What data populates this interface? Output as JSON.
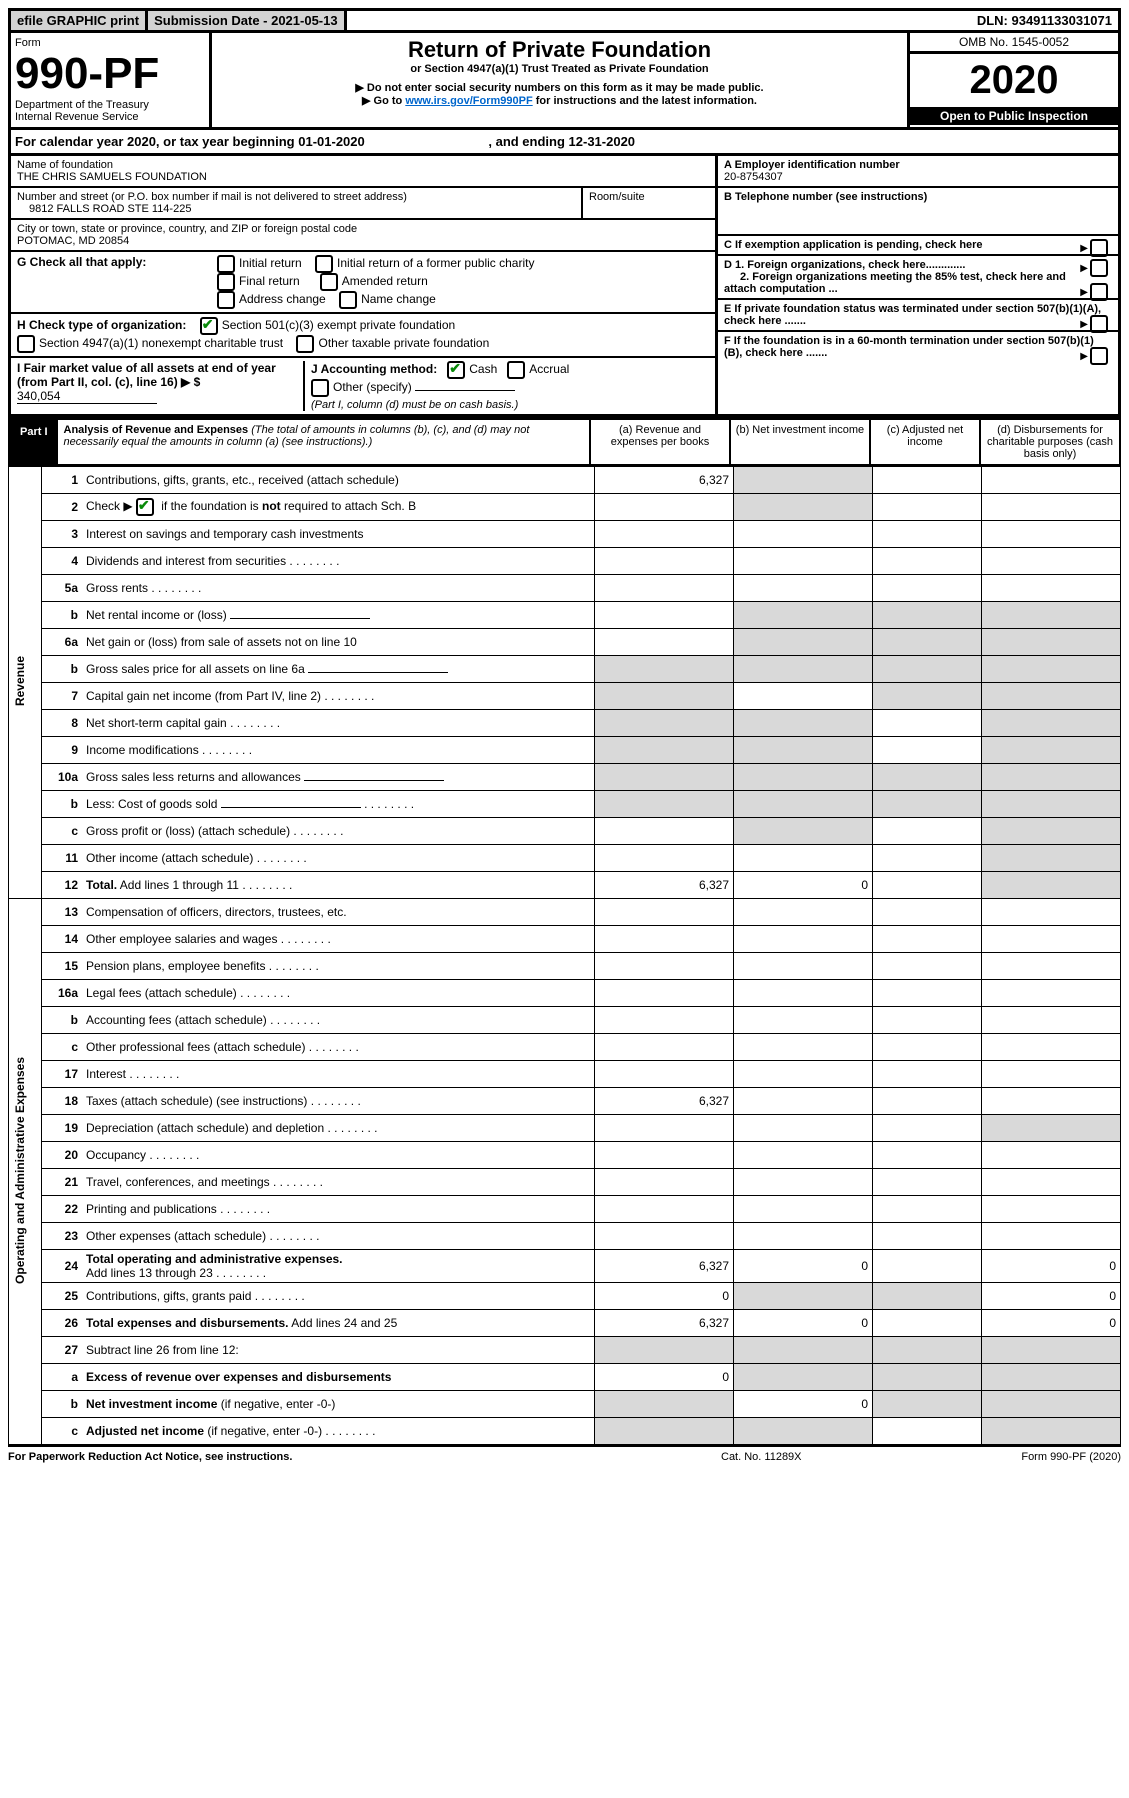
{
  "topbar": {
    "left": "efile GRAPHIC print",
    "mid": "Submission Date - 2021-05-13",
    "right": "DLN: 93491133031071"
  },
  "header": {
    "form_label": "Form",
    "form_number": "990-PF",
    "dept": "Department of the Treasury",
    "irs": "Internal Revenue Service",
    "title": "Return of Private Foundation",
    "subtitle": "or Section 4947(a)(1) Trust Treated as Private Foundation",
    "note1": "▶ Do not enter social security numbers on this form as it may be made public.",
    "note2_pre": "▶ Go to ",
    "note2_link": "www.irs.gov/Form990PF",
    "note2_post": " for instructions and the latest information.",
    "omb": "OMB No. 1545-0052",
    "year": "2020",
    "inspection": "Open to Public Inspection"
  },
  "calyear": {
    "pre": "For calendar year 2020, or tax year beginning ",
    "begin": "01-01-2020",
    "mid": ", and ending ",
    "end": "12-31-2020"
  },
  "info": {
    "name_label": "Name of foundation",
    "name": "THE CHRIS SAMUELS FOUNDATION",
    "addr_label": "Number and street (or P.O. box number if mail is not delivered to street address)",
    "addr": "9812 FALLS ROAD STE 114-225",
    "room_label": "Room/suite",
    "city_label": "City or town, state or province, country, and ZIP or foreign postal code",
    "city": "POTOMAC, MD  20854",
    "ein_label": "A Employer identification number",
    "ein": "20-8754307",
    "tel_label": "B Telephone number (see instructions)",
    "c": "C If exemption application is pending, check here",
    "d1": "D 1. Foreign organizations, check here.............",
    "d2": "2. Foreign organizations meeting the 85% test, check here and attach computation ...",
    "e": "E If private foundation status was terminated under section 507(b)(1)(A), check here .......",
    "f": "F If the foundation is in a 60-month termination under section 507(b)(1)(B), check here .......",
    "g_label": "G Check all that apply:",
    "g_initial": "Initial return",
    "g_initial_former": "Initial return of a former public charity",
    "g_final": "Final return",
    "g_amended": "Amended return",
    "g_addrchg": "Address change",
    "g_namechg": "Name change",
    "h_label": "H Check type of organization:",
    "h_501c3": "Section 501(c)(3) exempt private foundation",
    "h_4947": "Section 4947(a)(1) nonexempt charitable trust",
    "h_other": "Other taxable private foundation",
    "i_label": "I Fair market value of all assets at end of year (from Part II, col. (c), line 16) ▶ $",
    "i_val": "340,054",
    "j_label": "J Accounting method:",
    "j_cash": "Cash",
    "j_accrual": "Accrual",
    "j_other": "Other (specify)",
    "j_note": "(Part I, column (d) must be on cash basis.)"
  },
  "part1": {
    "tab": "Part I",
    "title": "Analysis of Revenue and Expenses",
    "note": " (The total of amounts in columns (b), (c), and (d) may not necessarily equal the amounts in column (a) (see instructions).)",
    "colA": "(a) Revenue and expenses per books",
    "colB": "(b) Net investment income",
    "colC": "(c) Adjusted net income",
    "colD": "(d) Disbursements for charitable purposes (cash basis only)",
    "side_rev": "Revenue",
    "side_ops": "Operating and Administrative Expenses"
  },
  "rows": [
    {
      "num": "1",
      "lbl": "Contributions, gifts, grants, etc., received (attach schedule)",
      "a": "6,327",
      "greyB": true,
      "c": "",
      "d": ""
    },
    {
      "num": "2",
      "html": "schB",
      "greyB": true
    },
    {
      "num": "3",
      "lbl": "Interest on savings and temporary cash investments"
    },
    {
      "num": "4",
      "lbl": "Dividends and interest from securities",
      "dots": true
    },
    {
      "num": "5a",
      "lbl": "Gross rents",
      "dots": true
    },
    {
      "num": "b",
      "lbl": "Net rental income or (loss)",
      "inline": true,
      "greyA": false,
      "greyB": true,
      "greyC": true,
      "greyD": true
    },
    {
      "num": "6a",
      "lbl": "Net gain or (loss) from sale of assets not on line 10",
      "greyB": true,
      "greyC": true,
      "greyD": true
    },
    {
      "num": "b",
      "lbl": "Gross sales price for all assets on line 6a",
      "inline": true,
      "greyA": true,
      "greyB": true,
      "greyC": true,
      "greyD": true
    },
    {
      "num": "7",
      "lbl": "Capital gain net income (from Part IV, line 2)",
      "dots": true,
      "greyA": true,
      "greyC": true,
      "greyD": true
    },
    {
      "num": "8",
      "lbl": "Net short-term capital gain",
      "dots": true,
      "greyA": true,
      "greyB": true,
      "greyD": true
    },
    {
      "num": "9",
      "lbl": "Income modifications",
      "dots": true,
      "greyA": true,
      "greyB": true,
      "greyD": true
    },
    {
      "num": "10a",
      "lbl": "Gross sales less returns and allowances",
      "inline": true,
      "greyA": true,
      "greyB": true,
      "greyC": true,
      "greyD": true
    },
    {
      "num": "b",
      "lbl": "Less: Cost of goods sold",
      "dots": true,
      "inline": true,
      "greyA": true,
      "greyB": true,
      "greyC": true,
      "greyD": true
    },
    {
      "num": "c",
      "lbl": "Gross profit or (loss) (attach schedule)",
      "dots": true,
      "greyB": true,
      "greyD": true
    },
    {
      "num": "11",
      "lbl": "Other income (attach schedule)",
      "dots": true,
      "greyD": true
    },
    {
      "num": "12",
      "lbl": "Total.",
      "post": " Add lines 1 through 11",
      "dots": true,
      "bold": true,
      "a": "6,327",
      "b": "0",
      "greyD": true
    }
  ],
  "rows_ops": [
    {
      "num": "13",
      "lbl": "Compensation of officers, directors, trustees, etc."
    },
    {
      "num": "14",
      "lbl": "Other employee salaries and wages",
      "dots": true
    },
    {
      "num": "15",
      "lbl": "Pension plans, employee benefits",
      "dots": true
    },
    {
      "num": "16a",
      "lbl": "Legal fees (attach schedule)",
      "dots": true
    },
    {
      "num": "b",
      "lbl": "Accounting fees (attach schedule)",
      "dots": true
    },
    {
      "num": "c",
      "lbl": "Other professional fees (attach schedule)",
      "dots": true
    },
    {
      "num": "17",
      "lbl": "Interest",
      "dots": true
    },
    {
      "num": "18",
      "lbl": "Taxes (attach schedule) (see instructions)",
      "dots": true,
      "a": "6,327"
    },
    {
      "num": "19",
      "lbl": "Depreciation (attach schedule) and depletion",
      "dots": true,
      "greyD": true
    },
    {
      "num": "20",
      "lbl": "Occupancy",
      "dots": true
    },
    {
      "num": "21",
      "lbl": "Travel, conferences, and meetings",
      "dots": true
    },
    {
      "num": "22",
      "lbl": "Printing and publications",
      "dots": true
    },
    {
      "num": "23",
      "lbl": "Other expenses (attach schedule)",
      "dots": true
    },
    {
      "num": "24",
      "lbl": "Total operating and administrative expenses.",
      "bold": true,
      "sub": "Add lines 13 through 23",
      "dots": true,
      "a": "6,327",
      "b": "0",
      "d": "0"
    },
    {
      "num": "25",
      "lbl": "Contributions, gifts, grants paid",
      "dots": true,
      "a": "0",
      "greyB": true,
      "greyC": true,
      "d": "0"
    },
    {
      "num": "26",
      "lbl": "Total expenses and disbursements.",
      "bold": true,
      "post": " Add lines 24 and 25",
      "a": "6,327",
      "b": "0",
      "d": "0"
    },
    {
      "num": "27",
      "lbl": "Subtract line 26 from line 12:",
      "greyA": true,
      "greyB": true,
      "greyC": true,
      "greyD": true
    },
    {
      "num": "a",
      "lbl": "Excess of revenue over expenses and disbursements",
      "bold": true,
      "a": "0",
      "greyB": true,
      "greyC": true,
      "greyD": true
    },
    {
      "num": "b",
      "lbl": "Net investment income",
      "bold": true,
      "post": " (if negative, enter -0-)",
      "greyA": true,
      "b": "0",
      "greyC": true,
      "greyD": true
    },
    {
      "num": "c",
      "lbl": "Adjusted net income",
      "bold": true,
      "post": " (if negative, enter -0-)",
      "dots": true,
      "greyA": true,
      "greyB": true,
      "greyD": true
    }
  ],
  "schB": {
    "pre": "Check ▶ ",
    "mid": " if the foundation is ",
    "not": "not",
    "post": " required to attach Sch. B"
  },
  "footer": {
    "l": "For Paperwork Reduction Act Notice, see instructions.",
    "m": "Cat. No. 11289X",
    "r": "Form 990-PF (2020)"
  },
  "style": {
    "checked_color": "#0a8a0a",
    "link_color": "#0066cc",
    "grey": "#d9d9d9",
    "border": "#000000"
  }
}
